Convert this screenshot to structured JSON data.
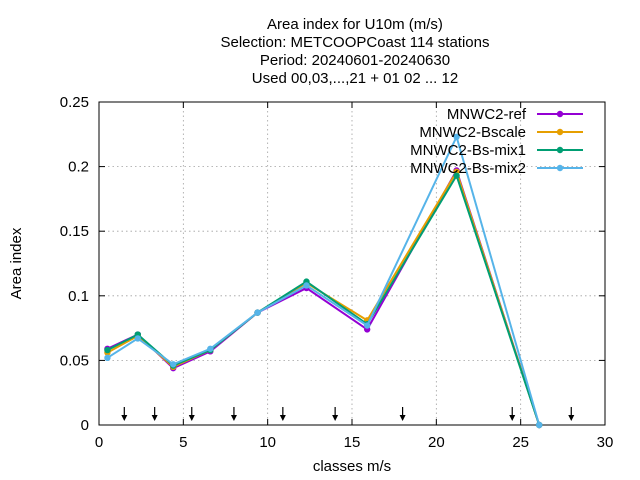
{
  "chart_data": {
    "type": "line",
    "title_lines": [
      "Area index  for U10m (m/s)",
      "Selection: METCOOPCoast    114 stations",
      "Period: 20240601-20240630",
      "Used 00,03,...,21 + 01 02 ... 12"
    ],
    "xlabel": "classes m/s",
    "ylabel": "Area index",
    "xlim": [
      0,
      30
    ],
    "ylim": [
      0,
      0.25
    ],
    "x_ticks": [
      "0",
      "5",
      "10",
      "15",
      "20",
      "25",
      "30"
    ],
    "y_ticks": [
      "0",
      "0.05",
      "0.1",
      "0.15",
      "0.2",
      "0.25"
    ],
    "grid": true,
    "legend_position": "top-right",
    "threshold_arrows_x": [
      1.5,
      3.3,
      5.5,
      8.0,
      10.9,
      14.0,
      18.0,
      24.5,
      28.0
    ],
    "series": [
      {
        "name": "MNWC2-ref",
        "color": "#9400d3",
        "marker": "filled-circle",
        "x": [
          0.5,
          2.3,
          4.4,
          6.6,
          9.4,
          12.3,
          15.9,
          21.2,
          26.1
        ],
        "y": [
          0.059,
          0.07,
          0.044,
          0.057,
          0.087,
          0.106,
          0.074,
          0.197,
          0.0
        ]
      },
      {
        "name": "MNWC2-Bscale",
        "color": "#e69f00",
        "marker": "filled-circle",
        "x": [
          0.5,
          2.3,
          4.4,
          6.6,
          9.4,
          12.3,
          15.9,
          21.2,
          26.1
        ],
        "y": [
          0.056,
          0.069,
          0.045,
          0.058,
          0.087,
          0.11,
          0.081,
          0.196,
          0.0
        ]
      },
      {
        "name": "MNWC2-Bs-mix1",
        "color": "#009e73",
        "marker": "filled-circle",
        "x": [
          0.5,
          2.3,
          4.4,
          6.6,
          9.4,
          12.3,
          15.9,
          21.2,
          26.1
        ],
        "y": [
          0.058,
          0.07,
          0.046,
          0.058,
          0.087,
          0.111,
          0.078,
          0.193,
          0.0
        ]
      },
      {
        "name": "MNWC2-Bs-mix2",
        "color": "#56b4e9",
        "marker": "filled-circle",
        "x": [
          0.5,
          2.3,
          4.4,
          6.6,
          9.4,
          12.3,
          15.9,
          21.2,
          26.1
        ],
        "y": [
          0.052,
          0.067,
          0.047,
          0.059,
          0.087,
          0.108,
          0.077,
          0.223,
          0.0
        ]
      }
    ]
  }
}
